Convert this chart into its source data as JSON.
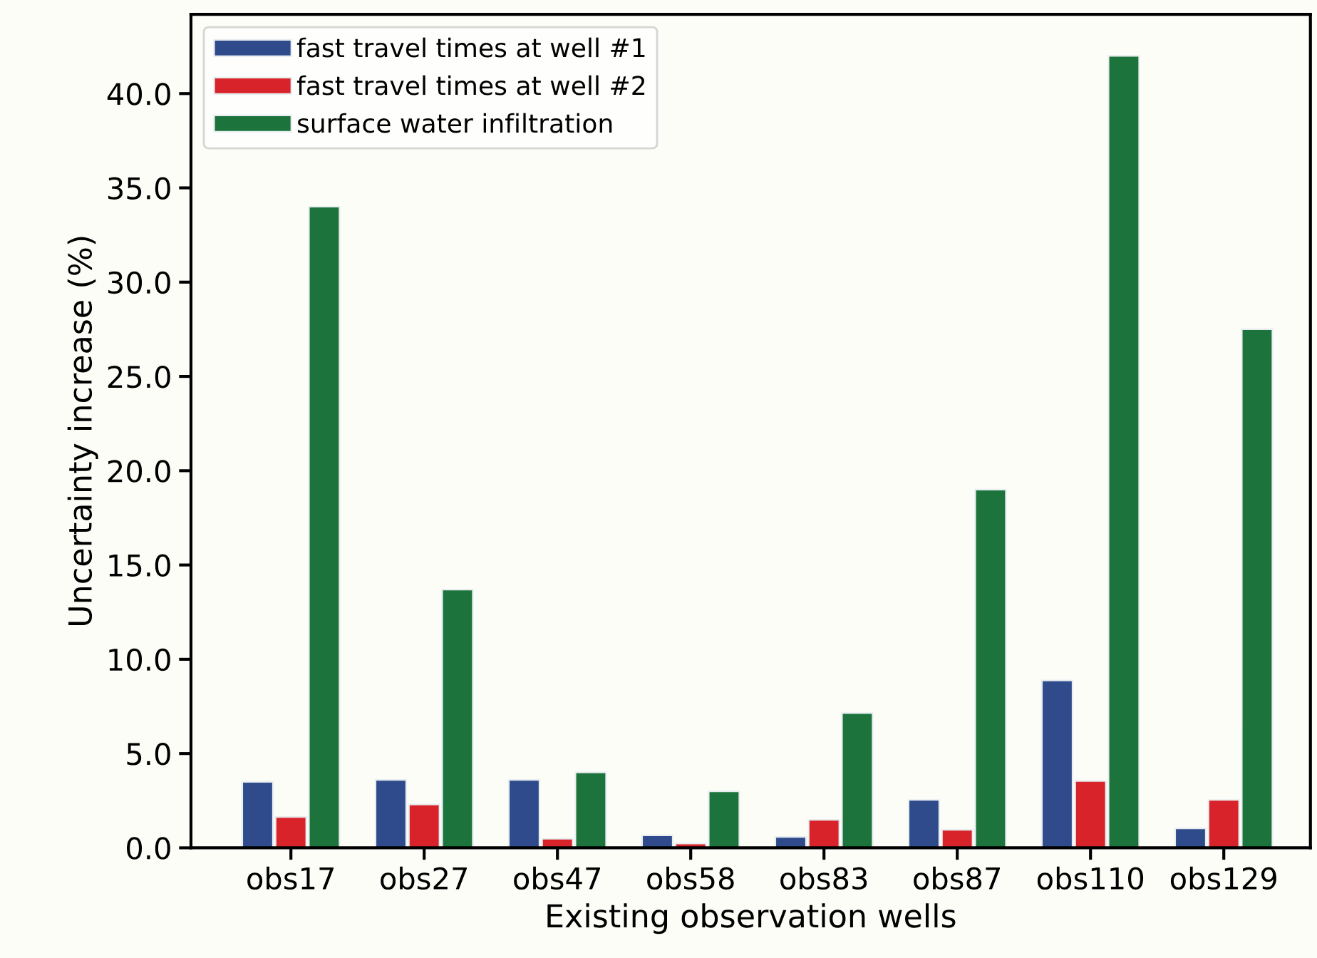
{
  "chart_data": {
    "type": "bar",
    "xlabel": "Existing observation wells",
    "ylabel": "Uncertainty increase (%)",
    "categories": [
      "obs17",
      "obs27",
      "obs47",
      "obs58",
      "obs83",
      "obs87",
      "obs110",
      "obs129"
    ],
    "series": [
      {
        "name": "fast travel times at well #1",
        "color": "#2f4b8c",
        "values": [
          3.5,
          3.6,
          3.6,
          0.66,
          0.58,
          2.54,
          8.88,
          1.03
        ]
      },
      {
        "name": "fast travel times at well #2",
        "color": "#d9232a",
        "values": [
          1.64,
          2.3,
          0.48,
          0.23,
          1.49,
          0.96,
          3.55,
          2.54
        ]
      },
      {
        "name": "surface water infiltration",
        "color": "#1c743c",
        "values": [
          34.0,
          13.7,
          4.0,
          3.0,
          7.15,
          19.0,
          42.0,
          27.5
        ]
      }
    ],
    "ylim": [
      0,
      44.2
    ],
    "yticks": [
      {
        "value": 0,
        "label": "0.0"
      },
      {
        "value": 5,
        "label": "5.0"
      },
      {
        "value": 10,
        "label": "10.0"
      },
      {
        "value": 15,
        "label": "15.0"
      },
      {
        "value": 20,
        "label": "20.0"
      },
      {
        "value": 25,
        "label": "25.0"
      },
      {
        "value": 30,
        "label": "30.0"
      },
      {
        "value": 35,
        "label": "35.0"
      },
      {
        "value": 40,
        "label": "40.0"
      }
    ],
    "grid": false,
    "legend": "top left"
  }
}
